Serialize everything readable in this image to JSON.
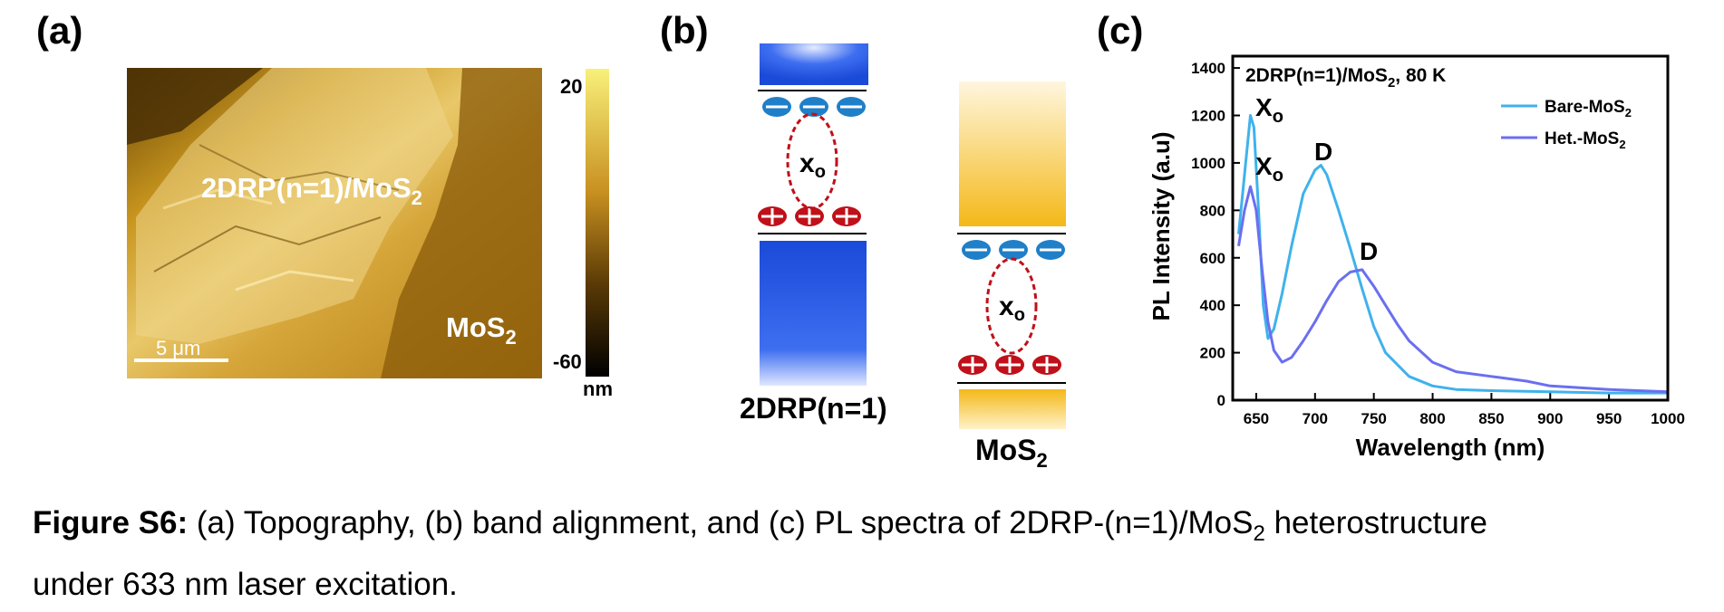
{
  "panel_labels": {
    "a": "(a)",
    "b": "(b)",
    "c": "(c)"
  },
  "panel_a": {
    "region_labels": {
      "heterostructure": "2DRP(n=1)/MoS",
      "heterostructure_sub": "2",
      "mos2": "MoS",
      "mos2_sub": "2"
    },
    "scale_bar": "5 μm",
    "colorbar": {
      "max": "20",
      "min": "-60",
      "unit": "nm"
    }
  },
  "panel_b": {
    "left_label": "2DRP(n=1)",
    "right_label": "MoS",
    "right_label_sub": "2",
    "exciton_label": "x",
    "exciton_sub": "o",
    "colors": {
      "blue": "#1f55e0",
      "yellow": "#f4b92a",
      "hole": "#c0101a",
      "electron": "#1f7fc8"
    }
  },
  "panel_c": {
    "annotation": "2DRP(n=1)/MoS",
    "annotation_sub": "2",
    "annotation_suffix": ", 80 K",
    "peak_labels": {
      "x0_main": "X",
      "x0_sub": "o",
      "d": "D"
    }
  },
  "chart_data": {
    "type": "line",
    "xlabel": "Wavelength (nm)",
    "ylabel": "PL Intensity (a.u)",
    "xlim": [
      630,
      1000
    ],
    "ylim": [
      0,
      1450
    ],
    "xticks": [
      650,
      700,
      750,
      800,
      850,
      900,
      950,
      1000
    ],
    "yticks": [
      0,
      200,
      400,
      600,
      800,
      1000,
      1200,
      1400
    ],
    "legend_position": "top-right",
    "series": [
      {
        "name": "Bare-MoS",
        "name_sub": "2",
        "color": "#3fb2ec",
        "x": [
          635,
          640,
          645,
          648,
          652,
          656,
          660,
          665,
          672,
          680,
          690,
          700,
          705,
          710,
          720,
          730,
          740,
          750,
          760,
          780,
          800,
          820,
          850,
          900,
          950,
          1000
        ],
        "y": [
          700,
          950,
          1200,
          1150,
          800,
          400,
          260,
          300,
          450,
          650,
          870,
          970,
          990,
          950,
          800,
          640,
          470,
          310,
          200,
          100,
          60,
          45,
          40,
          35,
          30,
          30
        ]
      },
      {
        "name": "Het.-MoS",
        "name_sub": "2",
        "color": "#6a6ff0",
        "x": [
          635,
          640,
          645,
          650,
          655,
          660,
          665,
          672,
          680,
          690,
          700,
          710,
          720,
          730,
          740,
          750,
          760,
          770,
          780,
          800,
          820,
          850,
          880,
          900,
          950,
          1000
        ],
        "y": [
          650,
          800,
          900,
          800,
          550,
          330,
          210,
          160,
          180,
          250,
          330,
          420,
          500,
          540,
          550,
          480,
          400,
          320,
          250,
          160,
          120,
          100,
          80,
          60,
          45,
          35
        ]
      }
    ]
  },
  "caption": {
    "label": "Figure S6:",
    "text_a": " (a) Topography, (b) band alignment, and (c) PL spectra of 2DRP-(n=1)/MoS",
    "text_sub": "2",
    "text_b": " heterostructure",
    "line2": "under 633 nm laser excitation."
  }
}
